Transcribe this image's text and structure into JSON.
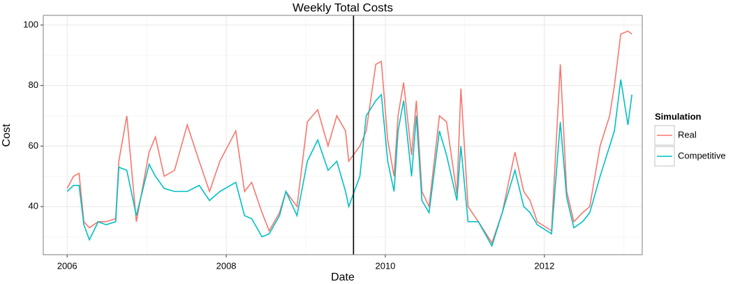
{
  "chart_data": {
    "type": "line",
    "title": "Weekly Total Costs",
    "x_label": "Date",
    "y_label": "Cost",
    "x": [
      2006.0,
      2006.08,
      2006.15,
      2006.21,
      2006.28,
      2006.39,
      2006.49,
      2006.61,
      2006.65,
      2006.75,
      2006.87,
      2007.03,
      2007.11,
      2007.22,
      2007.35,
      2007.51,
      2007.66,
      2007.79,
      2007.92,
      2008.12,
      2008.23,
      2008.32,
      2008.45,
      2008.54,
      2008.67,
      2008.75,
      2008.89,
      2009.02,
      2009.15,
      2009.28,
      2009.39,
      2009.5,
      2009.54,
      2009.68,
      2009.76,
      2009.88,
      2009.95,
      2010.03,
      2010.11,
      2010.16,
      2010.23,
      2010.33,
      2010.39,
      2010.46,
      2010.55,
      2010.68,
      2010.77,
      2010.9,
      2010.95,
      2011.04,
      2011.17,
      2011.34,
      2011.47,
      2011.63,
      2011.74,
      2011.82,
      2011.91,
      2012.09,
      2012.2,
      2012.28,
      2012.37,
      2012.48,
      2012.57,
      2012.7,
      2012.82,
      2012.88,
      2012.96,
      2013.05,
      2013.1
    ],
    "series": [
      {
        "name": "Real",
        "color": "#F8766D",
        "values": [
          46,
          50,
          51,
          35,
          33,
          35,
          35,
          36,
          55,
          70,
          35,
          58,
          63,
          50,
          52,
          67,
          55,
          45,
          55,
          65,
          45,
          48,
          38,
          32,
          38,
          45,
          40,
          68,
          72,
          60,
          70,
          65,
          55,
          60,
          65,
          87,
          88,
          62,
          50,
          70,
          81,
          57,
          75,
          45,
          40,
          70,
          68,
          44,
          79,
          40,
          35,
          28,
          38,
          58,
          45,
          42,
          35,
          32,
          87,
          45,
          35,
          38,
          40,
          60,
          70,
          80,
          97,
          98,
          97
        ]
      },
      {
        "name": "Competitive",
        "color": "#00BFC4",
        "values": [
          45,
          47,
          47,
          34,
          29,
          35,
          34,
          35,
          53,
          52,
          37,
          54,
          50,
          46,
          45,
          45,
          47,
          42,
          45,
          48,
          37,
          36,
          30,
          31,
          37,
          45,
          37,
          55,
          62,
          52,
          55,
          45,
          40,
          50,
          70,
          75,
          77,
          55,
          45,
          65,
          75,
          50,
          70,
          42,
          38,
          65,
          57,
          42,
          60,
          35,
          35,
          27,
          38,
          52,
          40,
          38,
          34,
          31,
          68,
          43,
          33,
          35,
          38,
          50,
          60,
          65,
          82,
          67,
          77
        ]
      }
    ],
    "vline": 2009.6,
    "vline_color": "#000000",
    "xlim": [
      2005.7,
      2013.23
    ],
    "xticks": [
      2006,
      2008,
      2010,
      2012
    ],
    "ylim": [
      24.1,
      103.2
    ],
    "yticks": [
      40,
      60,
      80,
      100
    ],
    "grid": true,
    "minor_grid": true,
    "legend_title": "Simulation",
    "legend_position": "right"
  }
}
